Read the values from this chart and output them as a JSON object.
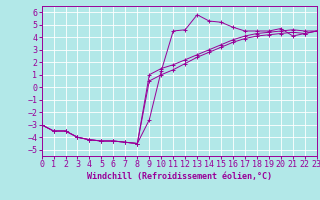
{
  "xlabel": "Windchill (Refroidissement éolien,°C)",
  "bg_color": "#b2e8e8",
  "grid_color": "#ffffff",
  "line_color": "#990099",
  "xlim": [
    0,
    23
  ],
  "ylim": [
    -5.5,
    6.5
  ],
  "xticks": [
    0,
    1,
    2,
    3,
    4,
    5,
    6,
    7,
    8,
    9,
    10,
    11,
    12,
    13,
    14,
    15,
    16,
    17,
    18,
    19,
    20,
    21,
    22,
    23
  ],
  "yticks": [
    -5,
    -4,
    -3,
    -2,
    -1,
    0,
    1,
    2,
    3,
    4,
    5,
    6
  ],
  "line1_x": [
    0,
    1,
    2,
    3,
    4,
    5,
    6,
    7,
    8,
    9,
    10,
    11,
    12,
    13,
    14,
    15,
    16,
    17,
    18,
    19,
    20,
    21,
    22,
    23
  ],
  "line1_y": [
    -3,
    -3.5,
    -3.5,
    -4,
    -4.2,
    -4.3,
    -4.3,
    -4.4,
    -4.5,
    -2.6,
    1.3,
    4.5,
    4.6,
    5.8,
    5.3,
    5.2,
    4.8,
    4.5,
    4.5,
    4.5,
    4.7,
    4.1,
    4.3,
    4.5
  ],
  "line2_x": [
    0,
    1,
    2,
    3,
    4,
    5,
    6,
    7,
    8,
    9,
    10,
    11,
    12,
    13,
    14,
    15,
    16,
    17,
    18,
    19,
    20,
    21,
    22,
    23
  ],
  "line2_y": [
    -3,
    -3.5,
    -3.5,
    -4,
    -4.2,
    -4.3,
    -4.3,
    -4.4,
    -4.5,
    1.0,
    1.5,
    1.8,
    2.2,
    2.6,
    3.0,
    3.4,
    3.8,
    4.1,
    4.3,
    4.4,
    4.5,
    4.6,
    4.5,
    4.5
  ],
  "line3_x": [
    0,
    1,
    2,
    3,
    4,
    5,
    6,
    7,
    8,
    9,
    10,
    11,
    12,
    13,
    14,
    15,
    16,
    17,
    18,
    19,
    20,
    21,
    22,
    23
  ],
  "line3_y": [
    -3,
    -3.5,
    -3.5,
    -4,
    -4.2,
    -4.3,
    -4.3,
    -4.4,
    -4.5,
    0.5,
    1.0,
    1.4,
    1.9,
    2.4,
    2.8,
    3.2,
    3.6,
    3.9,
    4.1,
    4.2,
    4.3,
    4.4,
    4.3,
    4.5
  ],
  "xlabel_fontsize": 6,
  "tick_fontsize": 6
}
